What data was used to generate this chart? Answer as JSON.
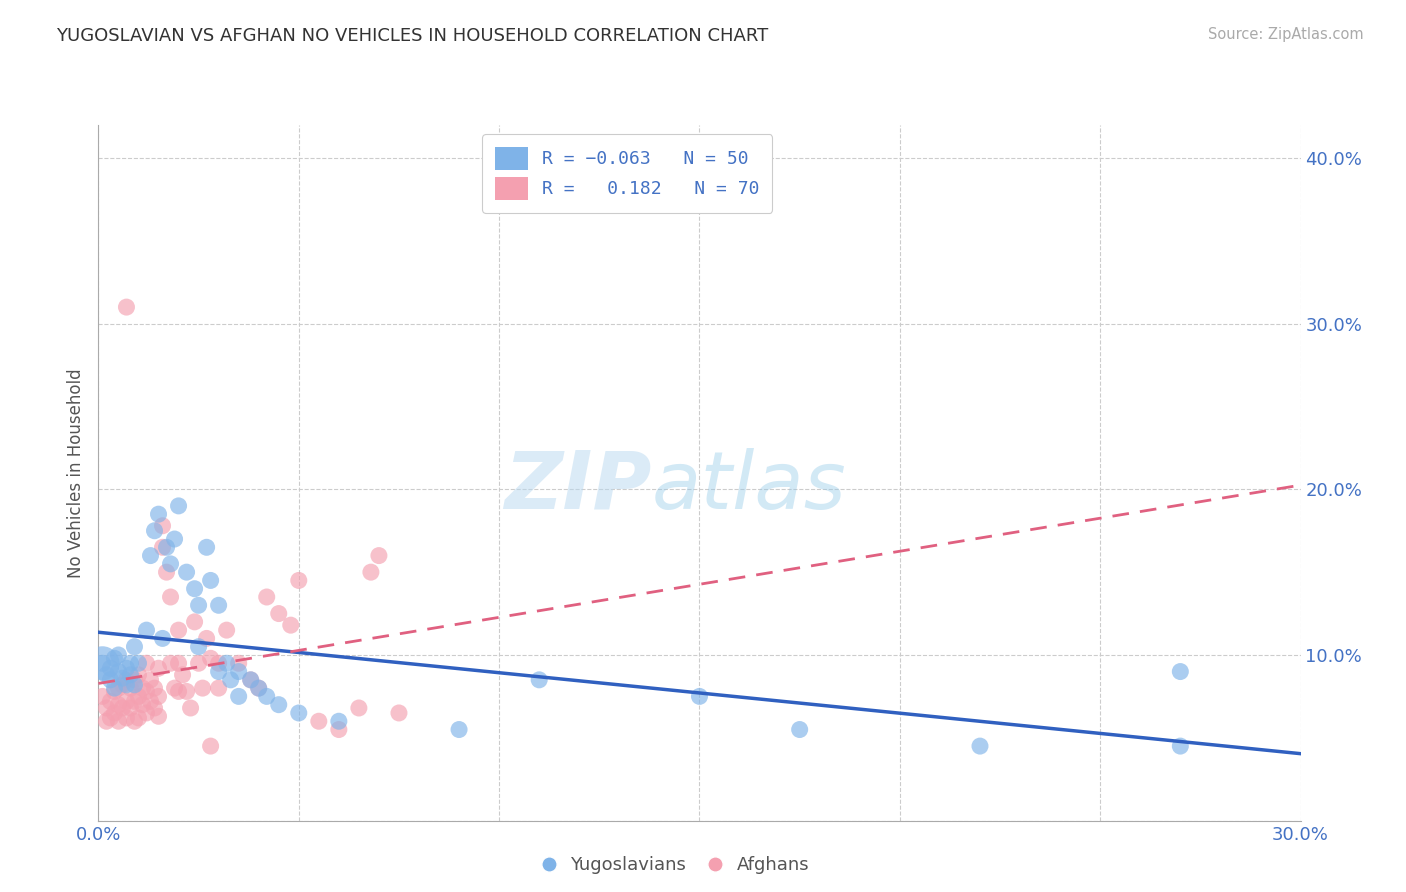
{
  "title": "YUGOSLAVIAN VS AFGHAN NO VEHICLES IN HOUSEHOLD CORRELATION CHART",
  "source": "Source: ZipAtlas.com",
  "ylabel": "No Vehicles in Household",
  "xlim": [
    0.0,
    0.3
  ],
  "ylim": [
    0.0,
    0.42
  ],
  "xticks": [
    0.0,
    0.05,
    0.1,
    0.15,
    0.2,
    0.25,
    0.3
  ],
  "yticks": [
    0.0,
    0.1,
    0.2,
    0.3,
    0.4
  ],
  "color_yugo": "#7fb3e8",
  "color_afghan": "#f4a0b0",
  "trend_color_yugo": "#3060c0",
  "trend_color_afghan": "#e06080",
  "background_color": "#ffffff",
  "grid_color": "#cccccc",
  "yugo_scatter": [
    [
      0.001,
      0.095
    ],
    [
      0.002,
      0.088
    ],
    [
      0.003,
      0.092
    ],
    [
      0.003,
      0.085
    ],
    [
      0.004,
      0.098
    ],
    [
      0.004,
      0.08
    ],
    [
      0.005,
      0.1
    ],
    [
      0.005,
      0.09
    ],
    [
      0.006,
      0.086
    ],
    [
      0.007,
      0.092
    ],
    [
      0.007,
      0.082
    ],
    [
      0.008,
      0.095
    ],
    [
      0.008,
      0.088
    ],
    [
      0.009,
      0.105
    ],
    [
      0.009,
      0.082
    ],
    [
      0.01,
      0.095
    ],
    [
      0.012,
      0.115
    ],
    [
      0.013,
      0.16
    ],
    [
      0.014,
      0.175
    ],
    [
      0.015,
      0.185
    ],
    [
      0.016,
      0.11
    ],
    [
      0.017,
      0.165
    ],
    [
      0.018,
      0.155
    ],
    [
      0.019,
      0.17
    ],
    [
      0.02,
      0.19
    ],
    [
      0.022,
      0.15
    ],
    [
      0.024,
      0.14
    ],
    [
      0.025,
      0.13
    ],
    [
      0.025,
      0.105
    ],
    [
      0.027,
      0.165
    ],
    [
      0.028,
      0.145
    ],
    [
      0.03,
      0.13
    ],
    [
      0.03,
      0.09
    ],
    [
      0.032,
      0.095
    ],
    [
      0.033,
      0.085
    ],
    [
      0.035,
      0.09
    ],
    [
      0.035,
      0.075
    ],
    [
      0.038,
      0.085
    ],
    [
      0.04,
      0.08
    ],
    [
      0.042,
      0.075
    ],
    [
      0.045,
      0.07
    ],
    [
      0.05,
      0.065
    ],
    [
      0.06,
      0.06
    ],
    [
      0.09,
      0.055
    ],
    [
      0.11,
      0.085
    ],
    [
      0.15,
      0.075
    ],
    [
      0.175,
      0.055
    ],
    [
      0.22,
      0.045
    ],
    [
      0.27,
      0.09
    ],
    [
      0.27,
      0.045
    ]
  ],
  "afghan_scatter": [
    [
      0.001,
      0.075
    ],
    [
      0.002,
      0.068
    ],
    [
      0.002,
      0.06
    ],
    [
      0.003,
      0.072
    ],
    [
      0.003,
      0.062
    ],
    [
      0.004,
      0.078
    ],
    [
      0.004,
      0.065
    ],
    [
      0.005,
      0.08
    ],
    [
      0.005,
      0.07
    ],
    [
      0.005,
      0.06
    ],
    [
      0.006,
      0.082
    ],
    [
      0.006,
      0.068
    ],
    [
      0.007,
      0.085
    ],
    [
      0.007,
      0.072
    ],
    [
      0.007,
      0.062
    ],
    [
      0.008,
      0.08
    ],
    [
      0.008,
      0.068
    ],
    [
      0.009,
      0.085
    ],
    [
      0.009,
      0.072
    ],
    [
      0.009,
      0.06
    ],
    [
      0.01,
      0.088
    ],
    [
      0.01,
      0.075
    ],
    [
      0.01,
      0.062
    ],
    [
      0.011,
      0.08
    ],
    [
      0.011,
      0.07
    ],
    [
      0.012,
      0.095
    ],
    [
      0.012,
      0.078
    ],
    [
      0.012,
      0.065
    ],
    [
      0.013,
      0.085
    ],
    [
      0.013,
      0.072
    ],
    [
      0.014,
      0.08
    ],
    [
      0.014,
      0.068
    ],
    [
      0.015,
      0.092
    ],
    [
      0.015,
      0.075
    ],
    [
      0.015,
      0.063
    ],
    [
      0.016,
      0.178
    ],
    [
      0.016,
      0.165
    ],
    [
      0.017,
      0.15
    ],
    [
      0.018,
      0.135
    ],
    [
      0.018,
      0.095
    ],
    [
      0.019,
      0.08
    ],
    [
      0.02,
      0.115
    ],
    [
      0.02,
      0.095
    ],
    [
      0.02,
      0.078
    ],
    [
      0.021,
      0.088
    ],
    [
      0.022,
      0.078
    ],
    [
      0.023,
      0.068
    ],
    [
      0.024,
      0.12
    ],
    [
      0.025,
      0.095
    ],
    [
      0.026,
      0.08
    ],
    [
      0.027,
      0.11
    ],
    [
      0.028,
      0.098
    ],
    [
      0.03,
      0.095
    ],
    [
      0.03,
      0.08
    ],
    [
      0.032,
      0.115
    ],
    [
      0.035,
      0.095
    ],
    [
      0.038,
      0.085
    ],
    [
      0.04,
      0.08
    ],
    [
      0.042,
      0.135
    ],
    [
      0.045,
      0.125
    ],
    [
      0.048,
      0.118
    ],
    [
      0.05,
      0.145
    ],
    [
      0.055,
      0.06
    ],
    [
      0.06,
      0.055
    ],
    [
      0.065,
      0.068
    ],
    [
      0.068,
      0.15
    ],
    [
      0.07,
      0.16
    ],
    [
      0.075,
      0.065
    ],
    [
      0.007,
      0.31
    ],
    [
      0.028,
      0.045
    ]
  ]
}
